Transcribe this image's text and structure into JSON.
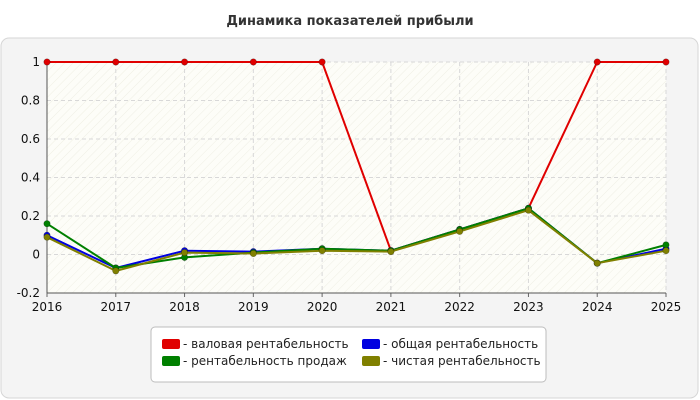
{
  "chart_data": {
    "type": "line",
    "title": "Динамика показателей прибыли",
    "x": [
      "2016",
      "2017",
      "2018",
      "2019",
      "2020",
      "2021",
      "2022",
      "2023",
      "2024",
      "2025"
    ],
    "ylim": [
      -0.2,
      1
    ],
    "yticks": [
      "-0.2",
      "0",
      "0.2",
      "0.4",
      "0.6",
      "0.8",
      "1"
    ],
    "grid": true,
    "legend_position": "bottom",
    "series": [
      {
        "name": "- валовая рентабельность",
        "color": "#e00000",
        "values": [
          1,
          1,
          1,
          1,
          1,
          0.02,
          0.13,
          0.24,
          1,
          1
        ]
      },
      {
        "name": "- общая рентабельность",
        "color": "#0000e0",
        "values": [
          0.1,
          -0.07,
          0.02,
          0.015,
          0.03,
          0.02,
          0.13,
          0.24,
          -0.045,
          0.03
        ]
      },
      {
        "name": "- рентабельность продаж",
        "color": "#008000",
        "values": [
          0.16,
          -0.07,
          -0.015,
          0.01,
          0.03,
          0.02,
          0.13,
          0.24,
          -0.045,
          0.05
        ]
      },
      {
        "name": "- чистая рентабельность",
        "color": "#808000",
        "values": [
          0.09,
          -0.085,
          0.01,
          0.005,
          0.02,
          0.015,
          0.12,
          0.23,
          -0.045,
          0.02
        ]
      }
    ]
  }
}
